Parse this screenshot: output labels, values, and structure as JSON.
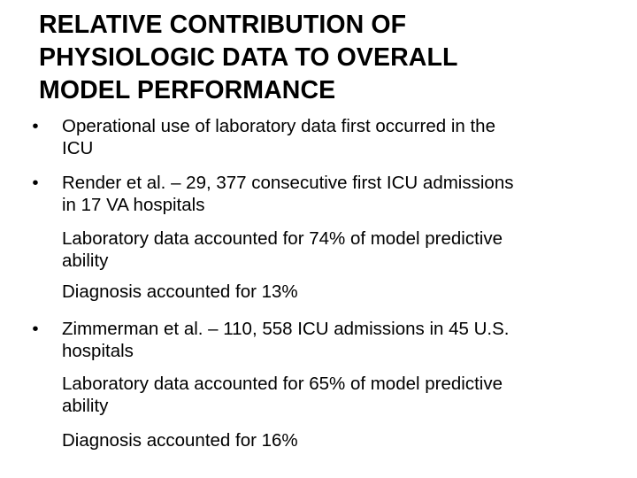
{
  "title": {
    "lines": [
      "RELATIVE CONTRIBUTION OF",
      "PHYSIOLOGIC DATA TO OVERALL",
      "MODEL PERFORMANCE"
    ]
  },
  "bullet_symbol": "•",
  "body": {
    "bullet1": {
      "line1": "Operational use of laboratory data first occurred in the",
      "line2": "ICU"
    },
    "bullet2": {
      "line1": "Render et al. – 29, 377 consecutive first ICU admissions",
      "line2": "in 17 VA hospitals"
    },
    "sub1": {
      "line1": "Laboratory data accounted for 74% of model predictive",
      "line2": "ability"
    },
    "sub2": {
      "line1": "Diagnosis accounted for 13%"
    },
    "bullet3": {
      "line1": "Zimmerman et al. – 110, 558 ICU admissions in 45 U.S.",
      "line2": "hospitals"
    },
    "sub3": {
      "line1": "Laboratory data accounted for 65% of model predictive",
      "line2": "ability"
    },
    "sub4": {
      "line1": "Diagnosis accounted for 16%"
    }
  }
}
